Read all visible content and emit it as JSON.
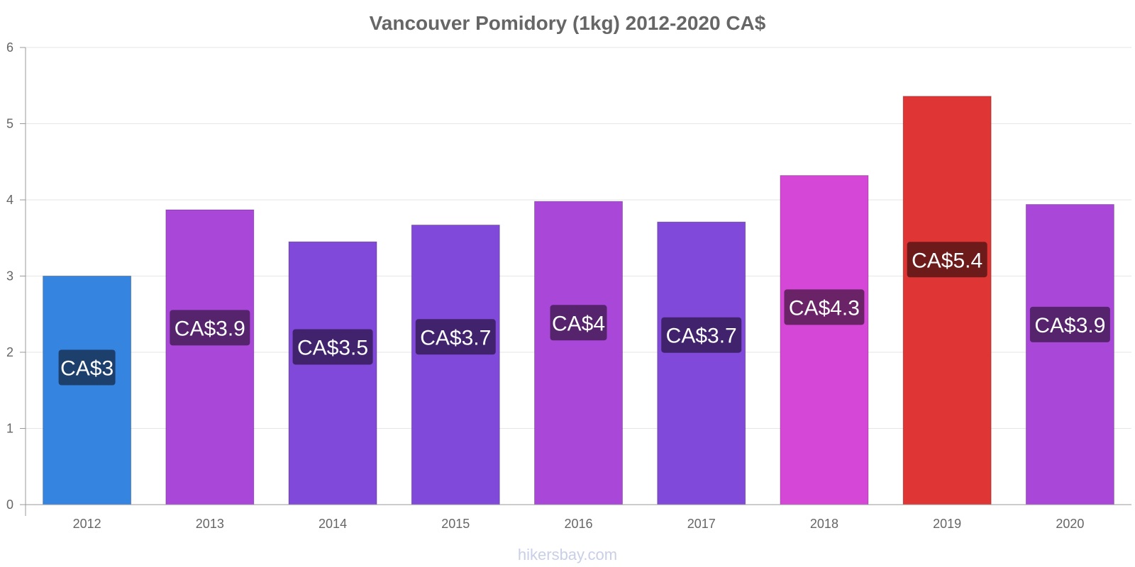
{
  "chart_data": {
    "type": "bar",
    "title": "Vancouver Pomidory (1kg) 2012-2020 CA$",
    "categories": [
      "2012",
      "2013",
      "2014",
      "2015",
      "2016",
      "2017",
      "2018",
      "2019",
      "2020"
    ],
    "values": [
      3.0,
      3.87,
      3.45,
      3.67,
      3.98,
      3.71,
      4.32,
      5.36,
      3.94
    ],
    "data_labels": [
      "CA$3",
      "CA$3.9",
      "CA$3.5",
      "CA$3.7",
      "CA$4",
      "CA$3.7",
      "CA$4.3",
      "CA$5.4",
      "CA$3.9"
    ],
    "colors": [
      "#3584e0",
      "#a947d9",
      "#8149d9",
      "#8149d9",
      "#a947d9",
      "#8149d9",
      "#d547d6",
      "#e03535",
      "#a947d9"
    ],
    "label_colors": [
      "#1c3f6c",
      "#55246d",
      "#41236d",
      "#41236d",
      "#55246d",
      "#41236d",
      "#6b2368",
      "#6d1a1a",
      "#55246d"
    ],
    "ylim": [
      0,
      6
    ],
    "yticks": [
      "0",
      "1",
      "2",
      "3",
      "4",
      "5",
      "6"
    ],
    "xlabel": "",
    "ylabel": "",
    "grid": true,
    "legend": "none"
  },
  "watermark": "hikersbay.com"
}
